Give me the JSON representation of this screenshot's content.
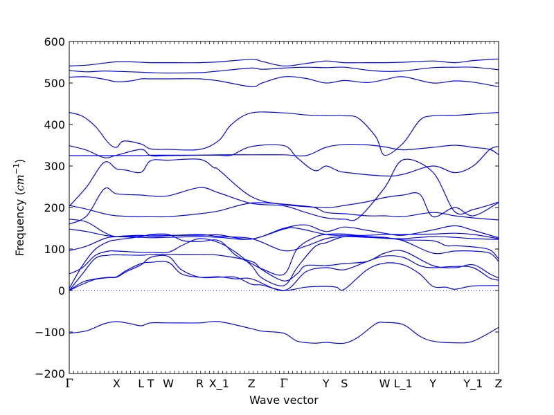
{
  "chart_data": {
    "type": "line",
    "title": "",
    "xlabel": "Wave vector",
    "ylabel": "Frequency ($cm^{-1}$)",
    "ylabel_text": "Frequency (",
    "ylabel_unit_base": "cm",
    "ylabel_unit_exp": "−1",
    "ylabel_close": ")",
    "ylim": [
      -200,
      600
    ],
    "yticks": [
      -200,
      -100,
      0,
      100,
      200,
      300,
      400,
      500,
      600
    ],
    "ytick_labels": [
      "−200",
      "−100",
      "0",
      "100",
      "200",
      "300",
      "400",
      "500",
      "600"
    ],
    "xlim": [
      0,
      49
    ],
    "high_symmetry_points": [
      {
        "label": "Γ",
        "x": 0
      },
      {
        "label": "X",
        "x": 5.4
      },
      {
        "label": "L",
        "x": 8.2
      },
      {
        "label": "T",
        "x": 9.3
      },
      {
        "label": "W",
        "x": 11.3
      },
      {
        "label": "R",
        "x": 14.9
      },
      {
        "label": "X_1",
        "x": 17.1
      },
      {
        "label": "Z",
        "x": 20.8
      },
      {
        "label": "Γ",
        "x": 24.5
      },
      {
        "label": "Y",
        "x": 29.3
      },
      {
        "label": "S",
        "x": 31.4
      },
      {
        "label": "W",
        "x": 36.0
      },
      {
        "label": "L_1",
        "x": 38.1
      },
      {
        "label": "Y",
        "x": 41.5
      },
      {
        "label": "Y_1",
        "x": 46.1
      },
      {
        "label": "Z",
        "x": 49.0
      }
    ],
    "line_color": "#0000ff",
    "zero_line": {
      "y": 0,
      "style": "dotted",
      "color": "#0000ff"
    },
    "series": [
      {
        "x": [
          0,
          2,
          4,
          5.4,
          7,
          8.2,
          9.3,
          11.3,
          14.9,
          17.1,
          20.8,
          22,
          24.5,
          27,
          29.3,
          31.4,
          34,
          36.0,
          38.1,
          41.5,
          44,
          46.1,
          49.0
        ],
        "y": [
          541,
          543,
          548,
          551,
          551,
          550,
          549,
          549,
          549,
          551,
          557,
          552,
          541,
          547,
          553,
          549,
          549,
          549,
          550,
          553,
          549,
          554,
          558
        ]
      },
      {
        "x": [
          0,
          2,
          4,
          5.4,
          7,
          8.2,
          9.3,
          11.3,
          14.9,
          17.1,
          20.8,
          22,
          24.5,
          27,
          29.3,
          31.4,
          34,
          36.0,
          38.1,
          41.5,
          44,
          46.1,
          49.0
        ],
        "y": [
          530,
          527,
          529,
          528,
          527,
          526,
          525,
          524,
          525,
          529,
          536,
          533,
          536,
          538,
          537,
          538,
          531,
          528,
          529,
          537,
          538,
          538,
          532
        ]
      },
      {
        "x": [
          0,
          2,
          4,
          5.4,
          7,
          8.2,
          9.3,
          11.3,
          14.9,
          17.1,
          20.8,
          22,
          24.5,
          27,
          29.3,
          31.4,
          34,
          36.0,
          38.1,
          41.5,
          44,
          46.1,
          49.0
        ],
        "y": [
          514,
          515,
          509,
          503,
          505,
          510,
          510,
          510,
          510,
          505,
          491,
          500,
          515,
          511,
          500,
          506,
          501,
          508,
          515,
          500,
          505,
          502,
          491
        ]
      },
      {
        "x": [
          0,
          1.5,
          3,
          4.5,
          5.4,
          6.2,
          8.2,
          9.3,
          11.3,
          14.9,
          17.1,
          18.5,
          20.8,
          24.5,
          27,
          29.3,
          31.4,
          33,
          35,
          36.0,
          38.1,
          40,
          41.5,
          44,
          46.1,
          49.0
        ],
        "y": [
          429,
          420,
          395,
          355,
          345,
          360,
          353,
          341,
          340,
          340,
          362,
          400,
          428,
          428,
          423,
          421,
          421,
          415,
          370,
          326,
          355,
          410,
          421,
          422,
          425,
          429
        ]
      },
      {
        "x": [
          0,
          2,
          4,
          5.4,
          8.2,
          9.3,
          11.3,
          14.9,
          17.1,
          20.8,
          24.5,
          27,
          29.3,
          31.4,
          34,
          36.0,
          38.1,
          41.5,
          44,
          46.1,
          48,
          49.0
        ],
        "y": [
          349,
          338,
          320,
          326,
          340,
          325,
          325,
          326,
          327,
          327,
          327,
          325,
          345,
          352,
          351,
          346,
          339,
          345,
          350,
          345,
          340,
          327
        ]
      },
      {
        "x": [
          0,
          2,
          4,
          5.4,
          8.2,
          9.3,
          11.3,
          14.9,
          17.1,
          18.5,
          20.8,
          24.5,
          26,
          28,
          29.3,
          30.5,
          31.4,
          36.0,
          38.1,
          41.5,
          44,
          46.1,
          48,
          49.0
        ],
        "y": [
          325,
          325,
          325,
          325,
          325,
          326,
          326,
          326,
          326,
          326,
          347,
          349,
          320,
          289,
          300,
          290,
          285,
          276,
          280,
          300,
          284,
          300,
          340,
          347
        ]
      },
      {
        "x": [
          0,
          2,
          4,
          5.4,
          6.5,
          8.2,
          9.3,
          11.3,
          14.9,
          16.5,
          17.1,
          20.8,
          24.5,
          29.3,
          31.4,
          34,
          36.0,
          38.1,
          40,
          41.5,
          44,
          46.1,
          49.0
        ],
        "y": [
          203,
          250,
          309,
          293,
          290,
          285,
          313,
          314,
          316,
          296,
          290,
          226,
          207,
          200,
          205,
          214,
          224,
          230,
          232,
          178,
          200,
          180,
          212
        ]
      },
      {
        "x": [
          0,
          2,
          4,
          5.4,
          8.2,
          9.3,
          11.3,
          14.9,
          17.1,
          20.8,
          24.5,
          27,
          29.3,
          31.4,
          33,
          36.0,
          38.1,
          41.5,
          44,
          46.1,
          49.0
        ],
        "y": [
          160,
          180,
          245,
          233,
          230,
          228,
          228,
          248,
          235,
          210,
          204,
          188,
          175,
          172,
          175,
          248,
          315,
          285,
          190,
          195,
          213
        ]
      },
      {
        "x": [
          0,
          2,
          4,
          5.4,
          8.2,
          9.3,
          11.3,
          14.9,
          17.1,
          20.8,
          24.5,
          26,
          28,
          29.3,
          31.4,
          34,
          36.0,
          38.1,
          41.5,
          44,
          46.1,
          49.0
        ],
        "y": [
          205,
          196,
          185,
          180,
          178,
          178,
          178,
          185,
          192,
          211,
          208,
          205,
          200,
          188,
          185,
          180,
          180,
          178,
          188,
          180,
          175,
          170
        ]
      },
      {
        "x": [
          0,
          2,
          4,
          5.4,
          8.2,
          9.3,
          11.3,
          14.9,
          17.1,
          20.8,
          24.5,
          27,
          29.3,
          31.4,
          34,
          36.0,
          38.1,
          41.5,
          44,
          46.1,
          49.0
        ],
        "y": [
          172,
          165,
          140,
          130,
          132,
          133,
          133,
          133,
          134,
          124,
          150,
          158,
          142,
          153,
          145,
          138,
          133,
          146,
          156,
          145,
          127
        ]
      },
      {
        "x": [
          0,
          2,
          4,
          5.4,
          8.2,
          9.3,
          11.3,
          14.9,
          17.1,
          20.8,
          24.5,
          26,
          29.3,
          31.4,
          34,
          36.0,
          38.1,
          41.5,
          44,
          46.1,
          49.0
        ],
        "y": [
          148,
          142,
          133,
          130,
          128,
          127,
          128,
          130,
          128,
          124,
          148,
          150,
          135,
          133,
          133,
          135,
          135,
          136,
          138,
          135,
          125
        ]
      },
      {
        "x": [
          0,
          2,
          4,
          5.4,
          8.2,
          9.3,
          11.3,
          14.9,
          17.1,
          20.8,
          24.5,
          27,
          29.3,
          31.4,
          34,
          36.0,
          38.1,
          41.5,
          44,
          46.1,
          49.0
        ],
        "y": [
          96,
          107,
          125,
          130,
          133,
          130,
          132,
          135,
          130,
          125,
          96,
          107,
          125,
          130,
          128,
          126,
          125,
          130,
          128,
          125,
          123
        ]
      },
      {
        "x": [
          0,
          1.5,
          3,
          4.5,
          5.4,
          8.2,
          9.3,
          11.3,
          13,
          14.9,
          17.1,
          19,
          20.8,
          22,
          24.5,
          26,
          28,
          29.3,
          31.4,
          34,
          36.0,
          38.1,
          41.5,
          43,
          44,
          46.1,
          48,
          49.0
        ],
        "y": [
          5,
          60,
          100,
          118,
          122,
          130,
          135,
          135,
          120,
          118,
          120,
          85,
          65,
          52,
          39,
          100,
          128,
          135,
          136,
          130,
          128,
          122,
          120,
          108,
          108,
          105,
          98,
          76
        ]
      },
      {
        "x": [
          0,
          1.5,
          3,
          4.5,
          5.4,
          8.2,
          9.3,
          11.3,
          13,
          14.9,
          17.1,
          19,
          20.8,
          22,
          24.5,
          26,
          28,
          29.3,
          31.4,
          34,
          36.0,
          38.1,
          41.5,
          44,
          46.1,
          48,
          49.0
        ],
        "y": [
          40,
          55,
          85,
          95,
          95,
          92,
          92,
          92,
          110,
          125,
          115,
          92,
          60,
          30,
          12,
          55,
          105,
          115,
          130,
          130,
          126,
          120,
          90,
          95,
          95,
          90,
          70
        ]
      },
      {
        "x": [
          0,
          1.5,
          3,
          4.5,
          5.4,
          8.2,
          9.3,
          11.3,
          14.9,
          17.1,
          20.8,
          22,
          24.5,
          26,
          27,
          29.3,
          31.4,
          34,
          36.0,
          38.1,
          41.5,
          44,
          46.1,
          48,
          49.0
        ],
        "y": [
          0,
          40,
          78,
          85,
          86,
          85,
          87,
          87,
          87,
          85,
          70,
          50,
          23,
          40,
          60,
          60,
          65,
          70,
          90,
          95,
          60,
          55,
          62,
          40,
          30
        ]
      },
      {
        "x": [
          0,
          1.5,
          3,
          4.5,
          5.4,
          6.5,
          8.2,
          9.3,
          11.3,
          12.8,
          14.9,
          17.1,
          19,
          20.8,
          24.5,
          27,
          29.3,
          31.4,
          34,
          36.0,
          38.1,
          40,
          41.5,
          44,
          46.1,
          48,
          49.0
        ],
        "y": [
          0,
          20,
          28,
          32,
          33,
          48,
          65,
          68,
          68,
          40,
          32,
          33,
          28,
          28,
          0,
          45,
          55,
          50,
          70,
          83,
          80,
          60,
          55,
          58,
          55,
          30,
          25
        ]
      },
      {
        "x": [
          0,
          1.5,
          3,
          4.5,
          5.4,
          6.5,
          8.2,
          9.3,
          11.3,
          12.8,
          14.9,
          17.1,
          19,
          20.8,
          22,
          24.5,
          27,
          29.3,
          30.5,
          31.4,
          34,
          36.0,
          38.1,
          40,
          41.5,
          43,
          44,
          46.1,
          49.0
        ],
        "y": [
          0,
          15,
          27,
          31,
          32,
          45,
          62,
          80,
          82,
          50,
          32,
          32,
          32,
          15,
          13,
          0,
          8,
          10,
          8,
          3,
          50,
          66,
          62,
          40,
          10,
          8,
          3,
          11,
          12
        ]
      },
      {
        "x": [
          0,
          2,
          4,
          5.4,
          7,
          8.2,
          9.3,
          11.3,
          14.9,
          17.1,
          20.8,
          22,
          24.5,
          26,
          28,
          29.3,
          31.4,
          33,
          35,
          36.0,
          38.1,
          40,
          41.5,
          44,
          46.1,
          49.0
        ],
        "y": [
          -103,
          -97,
          -80,
          -75,
          -80,
          -85,
          -78,
          -78,
          -78,
          -75,
          -92,
          -98,
          -103,
          -122,
          -127,
          -125,
          -127,
          -112,
          -80,
          -77,
          -82,
          -110,
          -122,
          -126,
          -122,
          -89
        ]
      }
    ]
  }
}
